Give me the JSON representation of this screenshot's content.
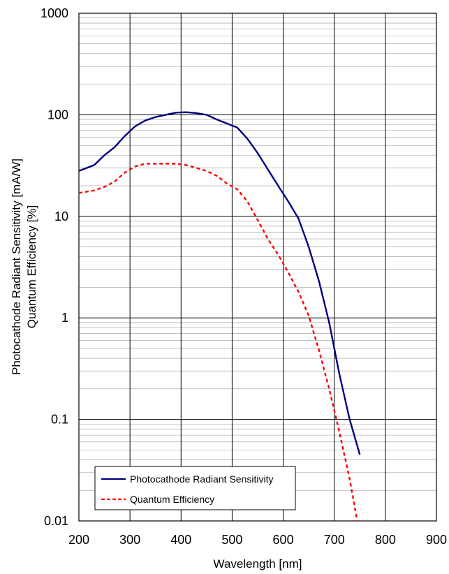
{
  "chart_data": {
    "type": "line",
    "title": "",
    "xlabel": "Wavelength [nm]",
    "ylabel_lines": [
      "Photocathode Radiant Sensitivity [mA/W]",
      "Quantum Efficiency [%]"
    ],
    "xlim": [
      200,
      900
    ],
    "ylim": [
      0.01,
      1000
    ],
    "yscale": "log",
    "grid": true,
    "x_ticks": [
      "200",
      "300",
      "400",
      "500",
      "600",
      "700",
      "800",
      "900"
    ],
    "y_ticks": [
      "0.01",
      "0.1",
      "1",
      "10",
      "100",
      "1000"
    ],
    "legend_position": "bottom-left",
    "series": [
      {
        "name": "Photocathode Radiant Sensitivity",
        "color": "#00007f",
        "style": "solid",
        "x": [
          200,
          230,
          250,
          270,
          290,
          310,
          330,
          350,
          370,
          390,
          410,
          430,
          450,
          470,
          490,
          510,
          530,
          550,
          570,
          590,
          610,
          630,
          650,
          670,
          690,
          710,
          730,
          750
        ],
        "y": [
          28,
          32,
          40,
          48,
          62,
          77,
          88,
          95,
          100,
          105,
          106,
          104,
          100,
          90,
          82,
          75,
          58,
          42,
          29,
          20,
          14,
          9.5,
          5,
          2.3,
          0.9,
          0.28,
          0.1,
          0.045
        ]
      },
      {
        "name": "Quantum Efficiency",
        "color": "#ff0000",
        "style": "dashed",
        "x": [
          200,
          230,
          250,
          270,
          290,
          310,
          330,
          350,
          370,
          390,
          410,
          430,
          450,
          470,
          490,
          510,
          530,
          550,
          570,
          590,
          610,
          630,
          650,
          670,
          690,
          710,
          730,
          745
        ],
        "y": [
          17,
          18,
          19.5,
          22,
          27,
          31,
          33,
          33,
          33,
          33,
          32,
          30,
          28,
          25,
          21,
          18.5,
          14,
          9.2,
          6,
          4.2,
          2.8,
          1.8,
          1.05,
          0.48,
          0.2,
          0.075,
          0.026,
          0.01
        ]
      }
    ]
  }
}
